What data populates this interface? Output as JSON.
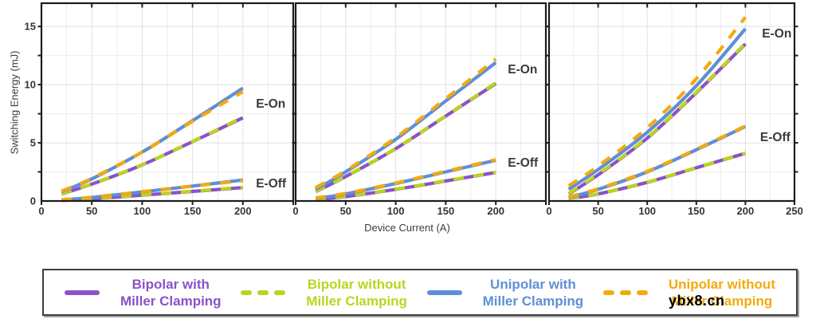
{
  "figure": {
    "x_label": "Device Current (A)",
    "y_label": "Switching Energy (mJ)",
    "y_tick_values": [
      0,
      5,
      10,
      15
    ],
    "y_tick_labels": [
      "0",
      "5",
      "10",
      "15"
    ],
    "watermark": "ybx8.cn"
  },
  "colors": {
    "purple": "#8a52c8",
    "green": "#bcd41e",
    "blue": "#5e8fd5",
    "orange": "#f5a90e",
    "text_dark": "#3a3a3a",
    "tick_text": "#353535",
    "grid_major": "#e0e0e0",
    "grid_minor": "#ededed",
    "spine": "#1c1c1c"
  },
  "legend": {
    "items": [
      {
        "line1": "Bipolar with",
        "line2": "Miller Clamping",
        "color": "purple",
        "style": "solid"
      },
      {
        "line1": "Bipolar without",
        "line2": "Miller Clamping",
        "color": "green",
        "style": "dashed"
      },
      {
        "line1": "Unipolar with",
        "line2": "Miller Clamping",
        "color": "blue",
        "style": "solid"
      },
      {
        "line1": "Unipolar without",
        "line2": "Miller Clamping",
        "color": "orange",
        "style": "dashed"
      }
    ]
  },
  "chart_data": [
    {
      "type": "line",
      "panel": 1,
      "xlabel_shared": "Device Current (A)",
      "ylabel_shared": "Switching Energy (mJ)",
      "x": [
        20,
        50,
        100,
        150,
        200
      ],
      "xlim": [
        0,
        250
      ],
      "ylim": [
        0,
        17
      ],
      "x_tick_labels": [
        0,
        50,
        100,
        150,
        200
      ],
      "series": [
        {
          "name": "Bipolar with Miller Clamping",
          "group": "E-On",
          "color": "purple",
          "style": "solid",
          "values": [
            0.6,
            1.45,
            3.1,
            5.1,
            7.15
          ]
        },
        {
          "name": "Bipolar without Miller Clamping",
          "group": "E-On",
          "color": "green",
          "style": "dashed",
          "values": [
            0.62,
            1.47,
            3.12,
            5.12,
            7.2
          ]
        },
        {
          "name": "Unipolar with Miller Clamping",
          "group": "E-On",
          "color": "blue",
          "style": "solid",
          "values": [
            0.8,
            1.9,
            4.2,
            6.9,
            9.7
          ]
        },
        {
          "name": "Unipolar without Miller Clamping",
          "group": "E-On",
          "color": "orange",
          "style": "dashed",
          "values": [
            0.85,
            1.95,
            4.2,
            6.85,
            9.4
          ]
        },
        {
          "name": "Bipolar with Miller Clamping",
          "group": "E-Off",
          "color": "purple",
          "style": "solid",
          "values": [
            0.05,
            0.18,
            0.5,
            0.82,
            1.15
          ]
        },
        {
          "name": "Bipolar without Miller Clamping",
          "group": "E-Off",
          "color": "green",
          "style": "dashed",
          "values": [
            0.06,
            0.2,
            0.52,
            0.84,
            1.18
          ]
        },
        {
          "name": "Unipolar with Miller Clamping",
          "group": "E-Off",
          "color": "blue",
          "style": "solid",
          "values": [
            0.08,
            0.3,
            0.78,
            1.28,
            1.8
          ]
        },
        {
          "name": "Unipolar without Miller Clamping",
          "group": "E-Off",
          "color": "orange",
          "style": "dashed",
          "values": [
            0.1,
            0.32,
            0.8,
            1.28,
            1.75
          ]
        }
      ],
      "annotations": [
        {
          "text": "E-On",
          "x": 213,
          "y": 8.35
        },
        {
          "text": "E-Off",
          "x": 213,
          "y": 1.5
        }
      ]
    },
    {
      "type": "line",
      "panel": 2,
      "x": [
        20,
        50,
        100,
        150,
        200
      ],
      "xlim": [
        0,
        250
      ],
      "ylim": [
        0,
        17
      ],
      "x_tick_labels": [
        0,
        50,
        100,
        150,
        200
      ],
      "series": [
        {
          "name": "Bipolar with Miller Clamping",
          "group": "E-On",
          "color": "purple",
          "style": "solid",
          "values": [
            0.8,
            2.1,
            4.5,
            7.3,
            10.1
          ]
        },
        {
          "name": "Bipolar without Miller Clamping",
          "group": "E-On",
          "color": "green",
          "style": "dashed",
          "values": [
            0.82,
            2.12,
            4.52,
            7.32,
            10.15
          ]
        },
        {
          "name": "Unipolar with Miller Clamping",
          "group": "E-On",
          "color": "blue",
          "style": "solid",
          "values": [
            1.0,
            2.5,
            5.3,
            8.6,
            11.9
          ]
        },
        {
          "name": "Unipolar without Miller Clamping",
          "group": "E-On",
          "color": "orange",
          "style": "dashed",
          "values": [
            1.15,
            2.6,
            5.45,
            8.8,
            12.2
          ]
        },
        {
          "name": "Bipolar with Miller Clamping",
          "group": "E-Off",
          "color": "purple",
          "style": "solid",
          "values": [
            0.12,
            0.38,
            1.0,
            1.72,
            2.45
          ]
        },
        {
          "name": "Bipolar without Miller Clamping",
          "group": "E-Off",
          "color": "green",
          "style": "dashed",
          "values": [
            0.13,
            0.4,
            1.02,
            1.74,
            2.47
          ]
        },
        {
          "name": "Unipolar with Miller Clamping",
          "group": "E-Off",
          "color": "blue",
          "style": "solid",
          "values": [
            0.22,
            0.6,
            1.5,
            2.5,
            3.5
          ]
        },
        {
          "name": "Unipolar without Miller Clamping",
          "group": "E-Off",
          "color": "orange",
          "style": "dashed",
          "values": [
            0.26,
            0.65,
            1.55,
            2.55,
            3.55
          ]
        }
      ],
      "annotations": [
        {
          "text": "E-On",
          "x": 212,
          "y": 11.3
        },
        {
          "text": "E-Off",
          "x": 212,
          "y": 3.3
        }
      ]
    },
    {
      "type": "line",
      "panel": 3,
      "x": [
        20,
        50,
        100,
        150,
        200
      ],
      "xlim": [
        0,
        250
      ],
      "ylim": [
        0,
        17
      ],
      "x_tick_labels": [
        0,
        50,
        100,
        150,
        200,
        250
      ],
      "series": [
        {
          "name": "Bipolar with Miller Clamping",
          "group": "E-On",
          "color": "purple",
          "style": "solid",
          "values": [
            0.6,
            2.25,
            5.4,
            9.3,
            13.5
          ]
        },
        {
          "name": "Bipolar without Miller Clamping",
          "group": "E-On",
          "color": "green",
          "style": "dashed",
          "values": [
            0.65,
            2.3,
            5.45,
            9.35,
            13.55
          ]
        },
        {
          "name": "Unipolar with Miller Clamping",
          "group": "E-On",
          "color": "blue",
          "style": "solid",
          "values": [
            1.0,
            2.7,
            5.9,
            9.9,
            14.8
          ]
        },
        {
          "name": "Unipolar without Miller Clamping",
          "group": "E-On",
          "color": "orange",
          "style": "dashed",
          "values": [
            1.3,
            3.0,
            6.3,
            10.5,
            15.8
          ]
        },
        {
          "name": "Bipolar with Miller Clamping",
          "group": "E-Off",
          "color": "purple",
          "style": "solid",
          "values": [
            0.2,
            0.6,
            1.6,
            2.85,
            4.1
          ]
        },
        {
          "name": "Bipolar without Miller Clamping",
          "group": "E-Off",
          "color": "green",
          "style": "dashed",
          "values": [
            0.22,
            0.62,
            1.62,
            2.87,
            4.12
          ]
        },
        {
          "name": "Unipolar with Miller Clamping",
          "group": "E-Off",
          "color": "blue",
          "style": "solid",
          "values": [
            0.3,
            1.0,
            2.5,
            4.4,
            6.4
          ]
        },
        {
          "name": "Unipolar without Miller Clamping",
          "group": "E-Off",
          "color": "orange",
          "style": "dashed",
          "values": [
            0.35,
            1.05,
            2.55,
            4.45,
            6.45
          ]
        }
      ],
      "annotations": [
        {
          "text": "E-On",
          "x": 217,
          "y": 14.4
        },
        {
          "text": "E-Off",
          "x": 215,
          "y": 5.5
        }
      ]
    }
  ]
}
